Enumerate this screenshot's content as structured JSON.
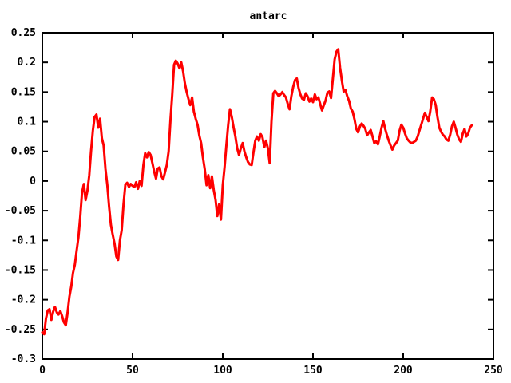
{
  "chart_data": {
    "type": "line",
    "title": "antarc",
    "xlabel": "",
    "ylabel": "",
    "xlim": [
      0,
      250
    ],
    "ylim": [
      -0.3,
      0.25
    ],
    "xticks": [
      0,
      50,
      100,
      150,
      200,
      250
    ],
    "xtick_labels": [
      "0",
      "50",
      "100",
      "150",
      "200",
      "250"
    ],
    "yticks": [
      -0.3,
      -0.25,
      -0.2,
      -0.15,
      -0.1,
      -0.05,
      0,
      0.05,
      0.1,
      0.15,
      0.2,
      0.25
    ],
    "ytick_labels": [
      "-0.3",
      "-0.25",
      "-0.2",
      "-0.15",
      "-0.1",
      "-0.05",
      "0",
      "0.05",
      "0.1",
      "0.15",
      "0.2",
      "0.25"
    ],
    "grid": false,
    "legend_position": "none",
    "background_color": "#ffffff",
    "axis_color": "#000000",
    "text_color": "#000000",
    "line_color": "#ff0000",
    "line_width": 3,
    "series": [
      {
        "name": "antarc",
        "x_start": 0,
        "x_step": 1,
        "values": [
          -0.255,
          -0.258,
          -0.232,
          -0.218,
          -0.216,
          -0.234,
          -0.22,
          -0.212,
          -0.221,
          -0.225,
          -0.219,
          -0.228,
          -0.238,
          -0.243,
          -0.222,
          -0.195,
          -0.178,
          -0.155,
          -0.141,
          -0.118,
          -0.095,
          -0.06,
          -0.02,
          -0.005,
          -0.032,
          -0.016,
          0.01,
          0.05,
          0.085,
          0.108,
          0.112,
          0.09,
          0.105,
          0.072,
          0.06,
          0.02,
          -0.007,
          -0.043,
          -0.074,
          -0.09,
          -0.105,
          -0.127,
          -0.133,
          -0.1,
          -0.083,
          -0.039,
          -0.006,
          -0.003,
          -0.01,
          -0.005,
          -0.008,
          -0.01,
          -0.002,
          -0.013,
          0.0,
          -0.008,
          0.027,
          0.047,
          0.04,
          0.049,
          0.044,
          0.03,
          0.016,
          0.004,
          0.021,
          0.023,
          0.008,
          0.003,
          0.015,
          0.027,
          0.05,
          0.103,
          0.145,
          0.196,
          0.203,
          0.198,
          0.19,
          0.2,
          0.185,
          0.165,
          0.15,
          0.138,
          0.128,
          0.141,
          0.117,
          0.105,
          0.095,
          0.077,
          0.064,
          0.04,
          0.02,
          -0.007,
          0.01,
          -0.012,
          0.008,
          -0.015,
          -0.032,
          -0.059,
          -0.039,
          -0.065,
          -0.007,
          0.024,
          0.06,
          0.095,
          0.121,
          0.108,
          0.09,
          0.075,
          0.055,
          0.044,
          0.055,
          0.064,
          0.05,
          0.04,
          0.032,
          0.028,
          0.027,
          0.048,
          0.068,
          0.075,
          0.068,
          0.079,
          0.074,
          0.057,
          0.068,
          0.055,
          0.03,
          0.1,
          0.148,
          0.152,
          0.148,
          0.143,
          0.146,
          0.15,
          0.145,
          0.141,
          0.13,
          0.121,
          0.143,
          0.158,
          0.17,
          0.173,
          0.157,
          0.146,
          0.139,
          0.137,
          0.148,
          0.143,
          0.134,
          0.139,
          0.133,
          0.146,
          0.138,
          0.141,
          0.13,
          0.119,
          0.128,
          0.136,
          0.149,
          0.151,
          0.14,
          0.173,
          0.205,
          0.218,
          0.222,
          0.191,
          0.169,
          0.151,
          0.153,
          0.143,
          0.135,
          0.122,
          0.117,
          0.104,
          0.088,
          0.082,
          0.092,
          0.097,
          0.093,
          0.088,
          0.077,
          0.082,
          0.086,
          0.075,
          0.064,
          0.067,
          0.062,
          0.075,
          0.09,
          0.101,
          0.088,
          0.077,
          0.068,
          0.06,
          0.053,
          0.06,
          0.064,
          0.068,
          0.085,
          0.095,
          0.09,
          0.08,
          0.072,
          0.068,
          0.065,
          0.064,
          0.066,
          0.068,
          0.075,
          0.085,
          0.095,
          0.105,
          0.115,
          0.108,
          0.101,
          0.118,
          0.141,
          0.138,
          0.128,
          0.108,
          0.09,
          0.083,
          0.078,
          0.075,
          0.07,
          0.068,
          0.078,
          0.092,
          0.1,
          0.09,
          0.078,
          0.07,
          0.066,
          0.08,
          0.088,
          0.075,
          0.08,
          0.09,
          0.094
        ]
      }
    ]
  }
}
